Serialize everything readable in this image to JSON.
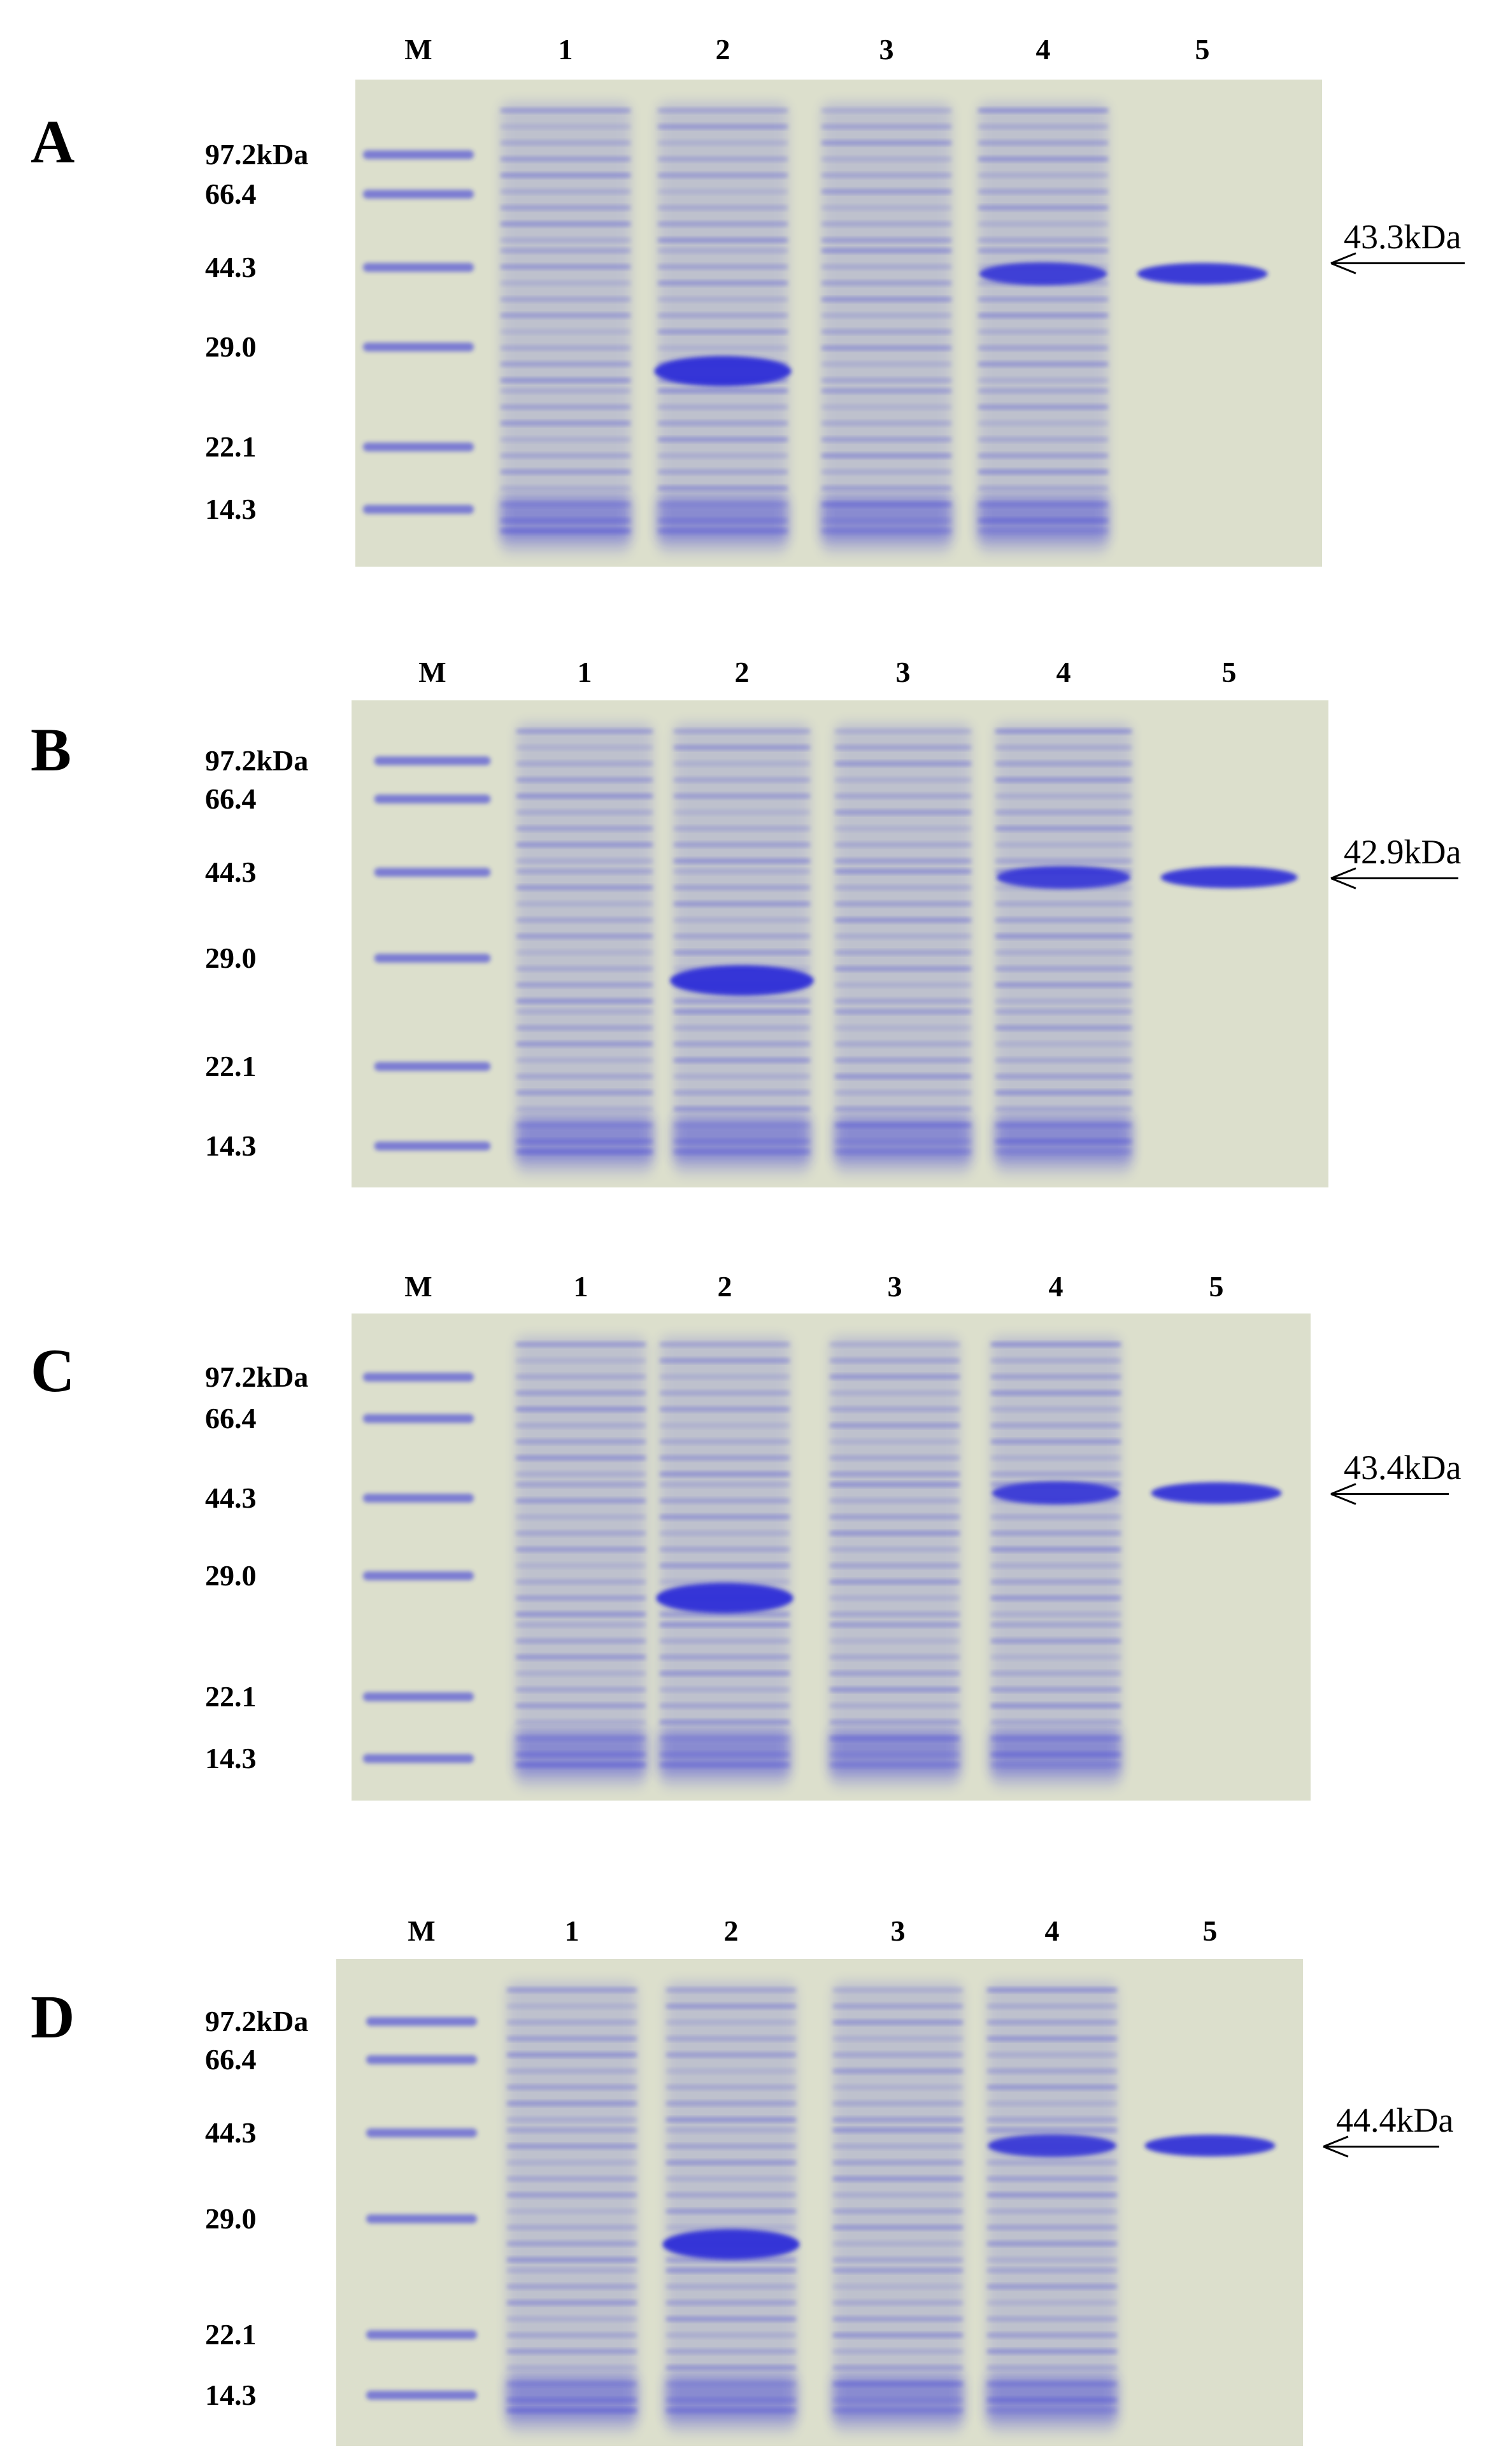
{
  "lane_labels": [
    "M",
    "1",
    "2",
    "3",
    "4",
    "5"
  ],
  "marker_labels": [
    "97.2kDa",
    "66.4",
    "44.3",
    "29.0",
    "22.1",
    "14.3"
  ],
  "colors": {
    "gel_bg": "#dcdfcc",
    "stain": "#2b2bd8"
  },
  "panels": [
    {
      "letter": "A",
      "protein_size": "43.3kDa"
    },
    {
      "letter": "B",
      "protein_size": "42.9kDa"
    },
    {
      "letter": "C",
      "protein_size": "43.4kDa"
    },
    {
      "letter": "D",
      "protein_size": "44.4kDa"
    }
  ]
}
